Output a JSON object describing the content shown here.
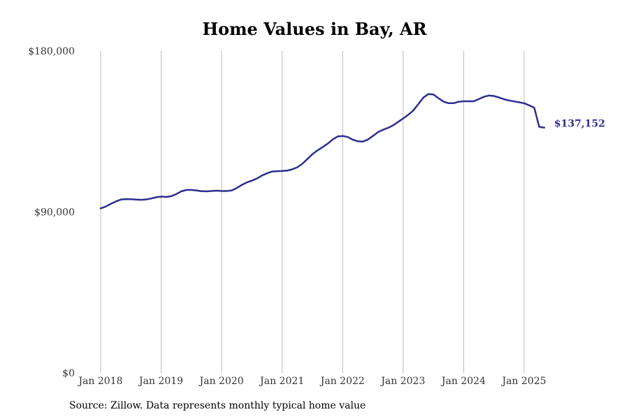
{
  "title": "Home Values in Bay, AR",
  "source": "Source: Zillow. Data represents monthly typical home value",
  "colors": {
    "line": "#2e2e8f",
    "grid": "#bbbbbb"
  },
  "chart_data": {
    "type": "line",
    "title": "Home Values in Bay, AR",
    "xlabel": "",
    "ylabel": "",
    "ylim": [
      0,
      180000
    ],
    "y_ticks": [
      {
        "value": 0,
        "label": "$0"
      },
      {
        "value": 90000,
        "label": "$90,000"
      },
      {
        "value": 180000,
        "label": "$180,000"
      }
    ],
    "x_ticks": [
      {
        "value": "2018-01",
        "label": "Jan 2018"
      },
      {
        "value": "2019-01",
        "label": "Jan 2019"
      },
      {
        "value": "2020-01",
        "label": "Jan 2020"
      },
      {
        "value": "2021-01",
        "label": "Jan 2021"
      },
      {
        "value": "2022-01",
        "label": "Jan 2022"
      },
      {
        "value": "2023-01",
        "label": "Jan 2023"
      },
      {
        "value": "2024-01",
        "label": "Jan 2024"
      },
      {
        "value": "2025-01",
        "label": "Jan 2025"
      }
    ],
    "grid": "vertical",
    "end_label": "$137,152",
    "series": [
      {
        "x": [
          "2018-01",
          "2018-02",
          "2018-03",
          "2018-04",
          "2018-05",
          "2018-06",
          "2018-07",
          "2018-08",
          "2018-09",
          "2018-10",
          "2018-11",
          "2018-12",
          "2019-01",
          "2019-02",
          "2019-03",
          "2019-04",
          "2019-05",
          "2019-06",
          "2019-07",
          "2019-08",
          "2019-09",
          "2019-10",
          "2019-11",
          "2019-12",
          "2020-01",
          "2020-02",
          "2020-03",
          "2020-04",
          "2020-05",
          "2020-06",
          "2020-07",
          "2020-08",
          "2020-09",
          "2020-10",
          "2020-11",
          "2020-12",
          "2021-01",
          "2021-02",
          "2021-03",
          "2021-04",
          "2021-05",
          "2021-06",
          "2021-07",
          "2021-08",
          "2021-09",
          "2021-10",
          "2021-11",
          "2021-12",
          "2022-01",
          "2022-02",
          "2022-03",
          "2022-04",
          "2022-05",
          "2022-06",
          "2022-07",
          "2022-08",
          "2022-09",
          "2022-10",
          "2022-11",
          "2022-12",
          "2023-01",
          "2023-02",
          "2023-03",
          "2023-04",
          "2023-05",
          "2023-06",
          "2023-07",
          "2023-08",
          "2023-09",
          "2023-10",
          "2023-11",
          "2023-12",
          "2024-01",
          "2024-02",
          "2024-03",
          "2024-04",
          "2024-05",
          "2024-06",
          "2024-07",
          "2024-08",
          "2024-09",
          "2024-10",
          "2024-11",
          "2024-12",
          "2025-01",
          "2025-02",
          "2025-03",
          "2025-04",
          "2025-05"
        ],
        "values": [
          92000,
          93000,
          94500,
          95800,
          96900,
          97200,
          97100,
          96900,
          96800,
          97000,
          97500,
          98200,
          98600,
          98400,
          98800,
          100000,
          101500,
          102300,
          102300,
          102000,
          101600,
          101500,
          101700,
          101900,
          101700,
          101700,
          102000,
          103400,
          105100,
          106500,
          107500,
          108700,
          110400,
          111600,
          112600,
          112800,
          112900,
          113100,
          113800,
          115000,
          116900,
          119600,
          122300,
          124400,
          126200,
          128100,
          130500,
          132200,
          132500,
          131900,
          130400,
          129500,
          129300,
          130500,
          132500,
          134600,
          135900,
          137000,
          138400,
          140300,
          142300,
          144300,
          146700,
          150300,
          153900,
          155900,
          155700,
          153600,
          151700,
          150800,
          150800,
          151600,
          151900,
          151900,
          151900,
          153100,
          154400,
          155100,
          154800,
          154000,
          153000,
          152300,
          151800,
          151300,
          150800,
          149600,
          148300,
          137500,
          137152
        ]
      }
    ]
  }
}
